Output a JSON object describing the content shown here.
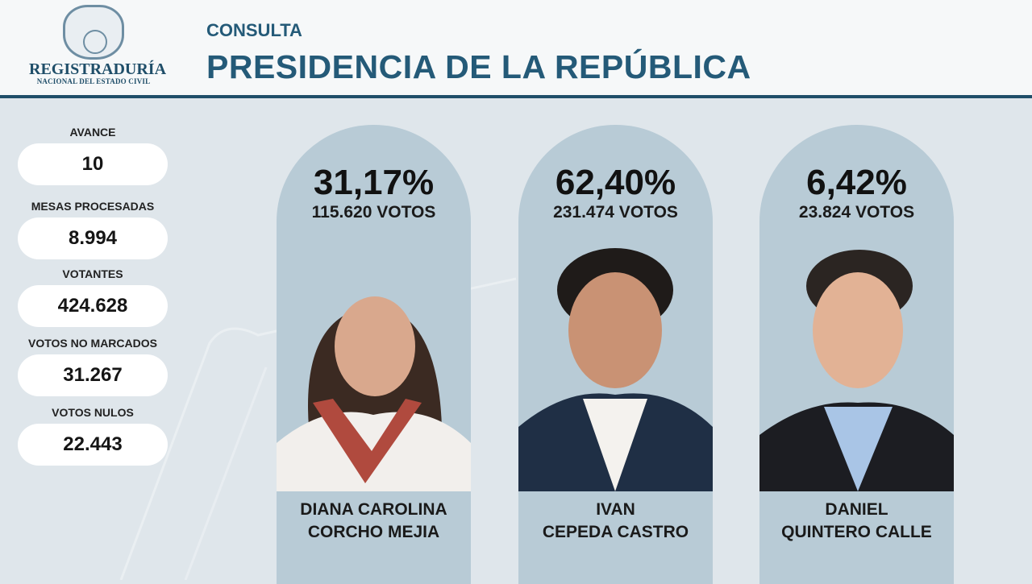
{
  "header": {
    "logo_line1": "REGISTRADURÍA",
    "logo_line2": "NACIONAL DEL ESTADO CIVIL",
    "subtitle": "CONSULTA",
    "title": "PRESIDENCIA DE LA REPÚBLICA"
  },
  "stats": [
    {
      "label": "AVANCE",
      "value": "10"
    },
    {
      "label": "MESAS PROCESADAS",
      "value": "8.994"
    },
    {
      "label": "VOTANTES",
      "value": "424.628"
    },
    {
      "label": "VOTOS NO MARCADOS",
      "value": "31.267"
    },
    {
      "label": "VOTOS NULOS",
      "value": "22.443"
    }
  ],
  "candidates": [
    {
      "percent": "31,17%",
      "votes": "115.620 VOTOS",
      "name_line1": "DIANA CAROLINA",
      "name_line2": "CORCHO MEJIA"
    },
    {
      "percent": "62,40%",
      "votes": "231.474 VOTOS",
      "name_line1": "IVAN",
      "name_line2": "CEPEDA CASTRO"
    },
    {
      "percent": "6,42%",
      "votes": "23.824 VOTOS",
      "name_line1": "DANIEL",
      "name_line2": "QUINTERO CALLE"
    }
  ],
  "colors": {
    "brand": "#245a78",
    "pillar": "#b8cbd6",
    "background": "#dfe6eb"
  }
}
